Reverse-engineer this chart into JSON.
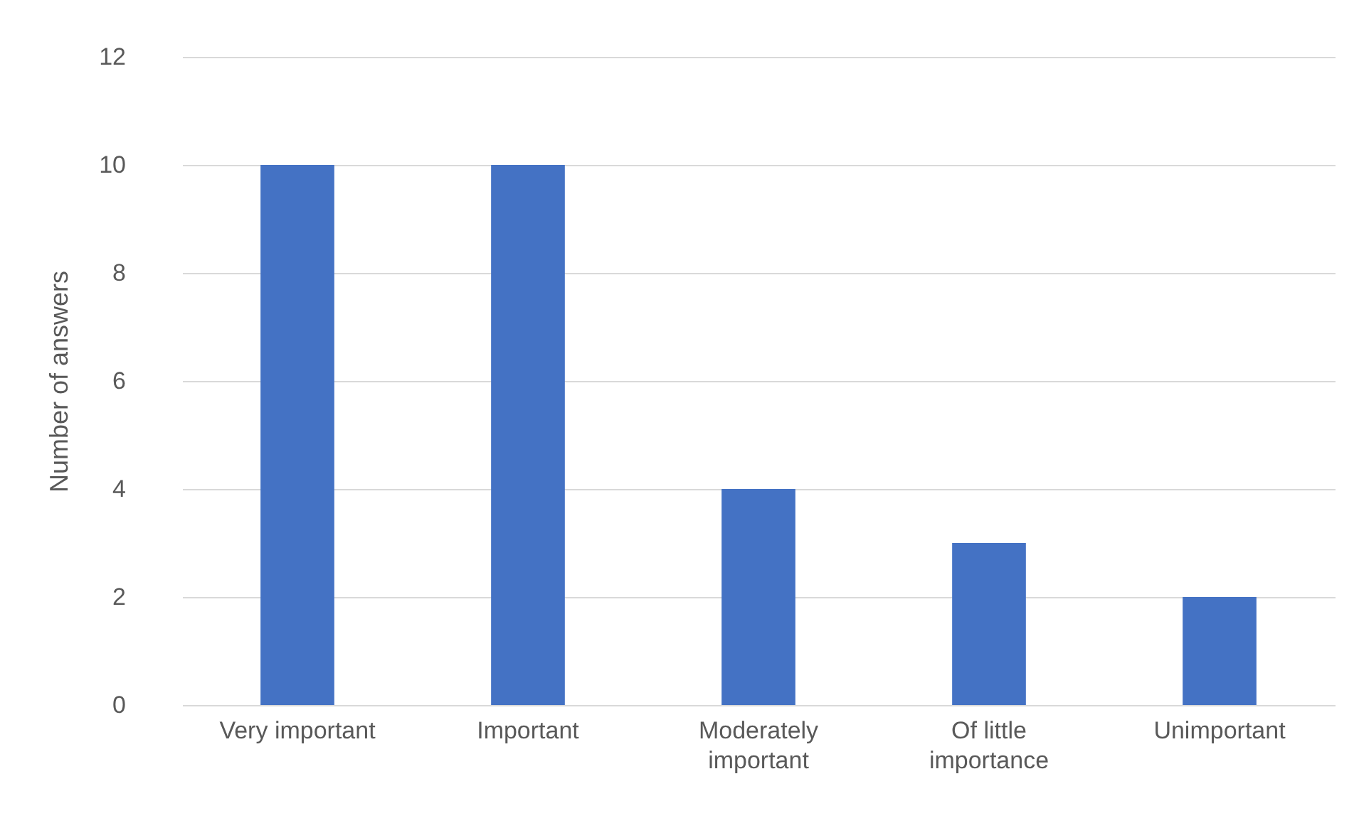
{
  "chart_data": {
    "type": "bar",
    "ylabel": "Number of answers",
    "categories": [
      "Very important",
      "Important",
      "Moderately important",
      "Of little importance",
      "Unimportant"
    ],
    "values": [
      10,
      10,
      4,
      3,
      2
    ],
    "color": "#4472c4",
    "ylim": [
      0,
      12
    ],
    "yticks": [
      0,
      2,
      4,
      6,
      8,
      10,
      12
    ],
    "grid": "y"
  }
}
